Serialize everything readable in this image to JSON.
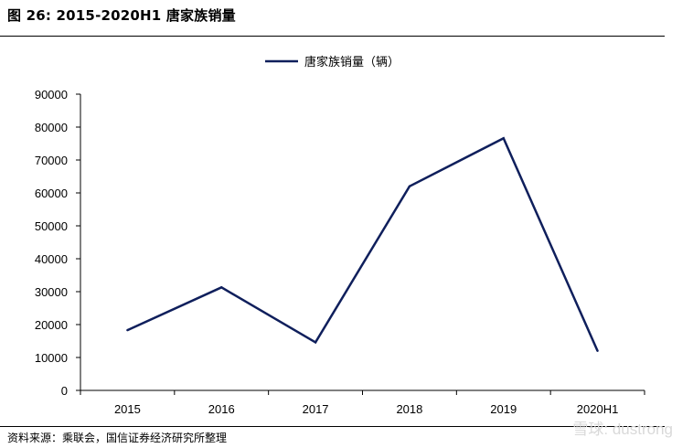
{
  "figure": {
    "title": "图 26:  2015-2020H1 唐家族销量",
    "source": "资料来源：乘联会，国信证券经济研究所整理",
    "watermark": "雪球: dustrong"
  },
  "chart_data": {
    "type": "line",
    "categories": [
      "2015",
      "2016",
      "2017",
      "2018",
      "2019",
      "2020H1"
    ],
    "series": [
      {
        "name": "唐家族销量（辆）",
        "values": [
          18300,
          31300,
          14600,
          62000,
          76600,
          12000
        ],
        "color": "#0f1f5c"
      }
    ],
    "ylim": [
      0,
      90000
    ],
    "yticks": [
      0,
      10000,
      20000,
      30000,
      40000,
      50000,
      60000,
      70000,
      80000,
      90000
    ],
    "legend": "top-center",
    "grid": false
  }
}
